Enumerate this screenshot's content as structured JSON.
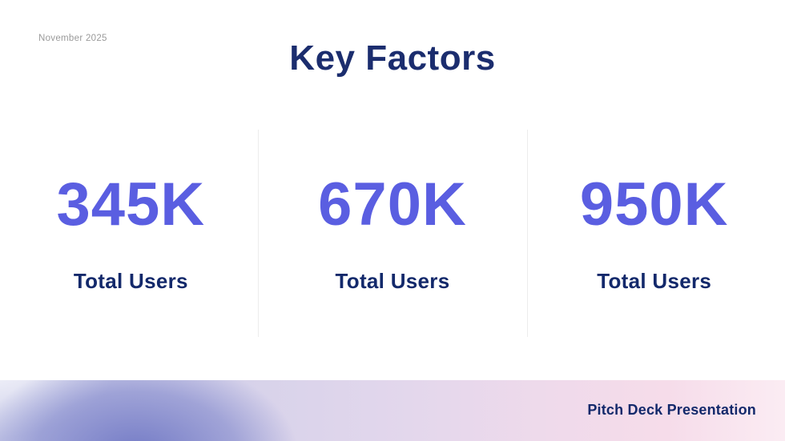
{
  "slide": {
    "date": "November 2025",
    "title": "Key Factors",
    "footer": "Pitch Deck Presentation"
  },
  "stats": [
    {
      "value": "345K",
      "label": "Total Users"
    },
    {
      "value": "670K",
      "label": "Total Users"
    },
    {
      "value": "950K",
      "label": "Total Users"
    }
  ],
  "colors": {
    "bg": "#ffffff",
    "accent": "#5a5ee1",
    "navy": "#13296b",
    "navy_title": "#1b2d6e",
    "date_gray": "#9a9a9a",
    "divider": "#ececec",
    "band_lavender": "#c9cbe8",
    "band_pink": "#f6dcea",
    "blob_purple": "#6f77c4"
  }
}
